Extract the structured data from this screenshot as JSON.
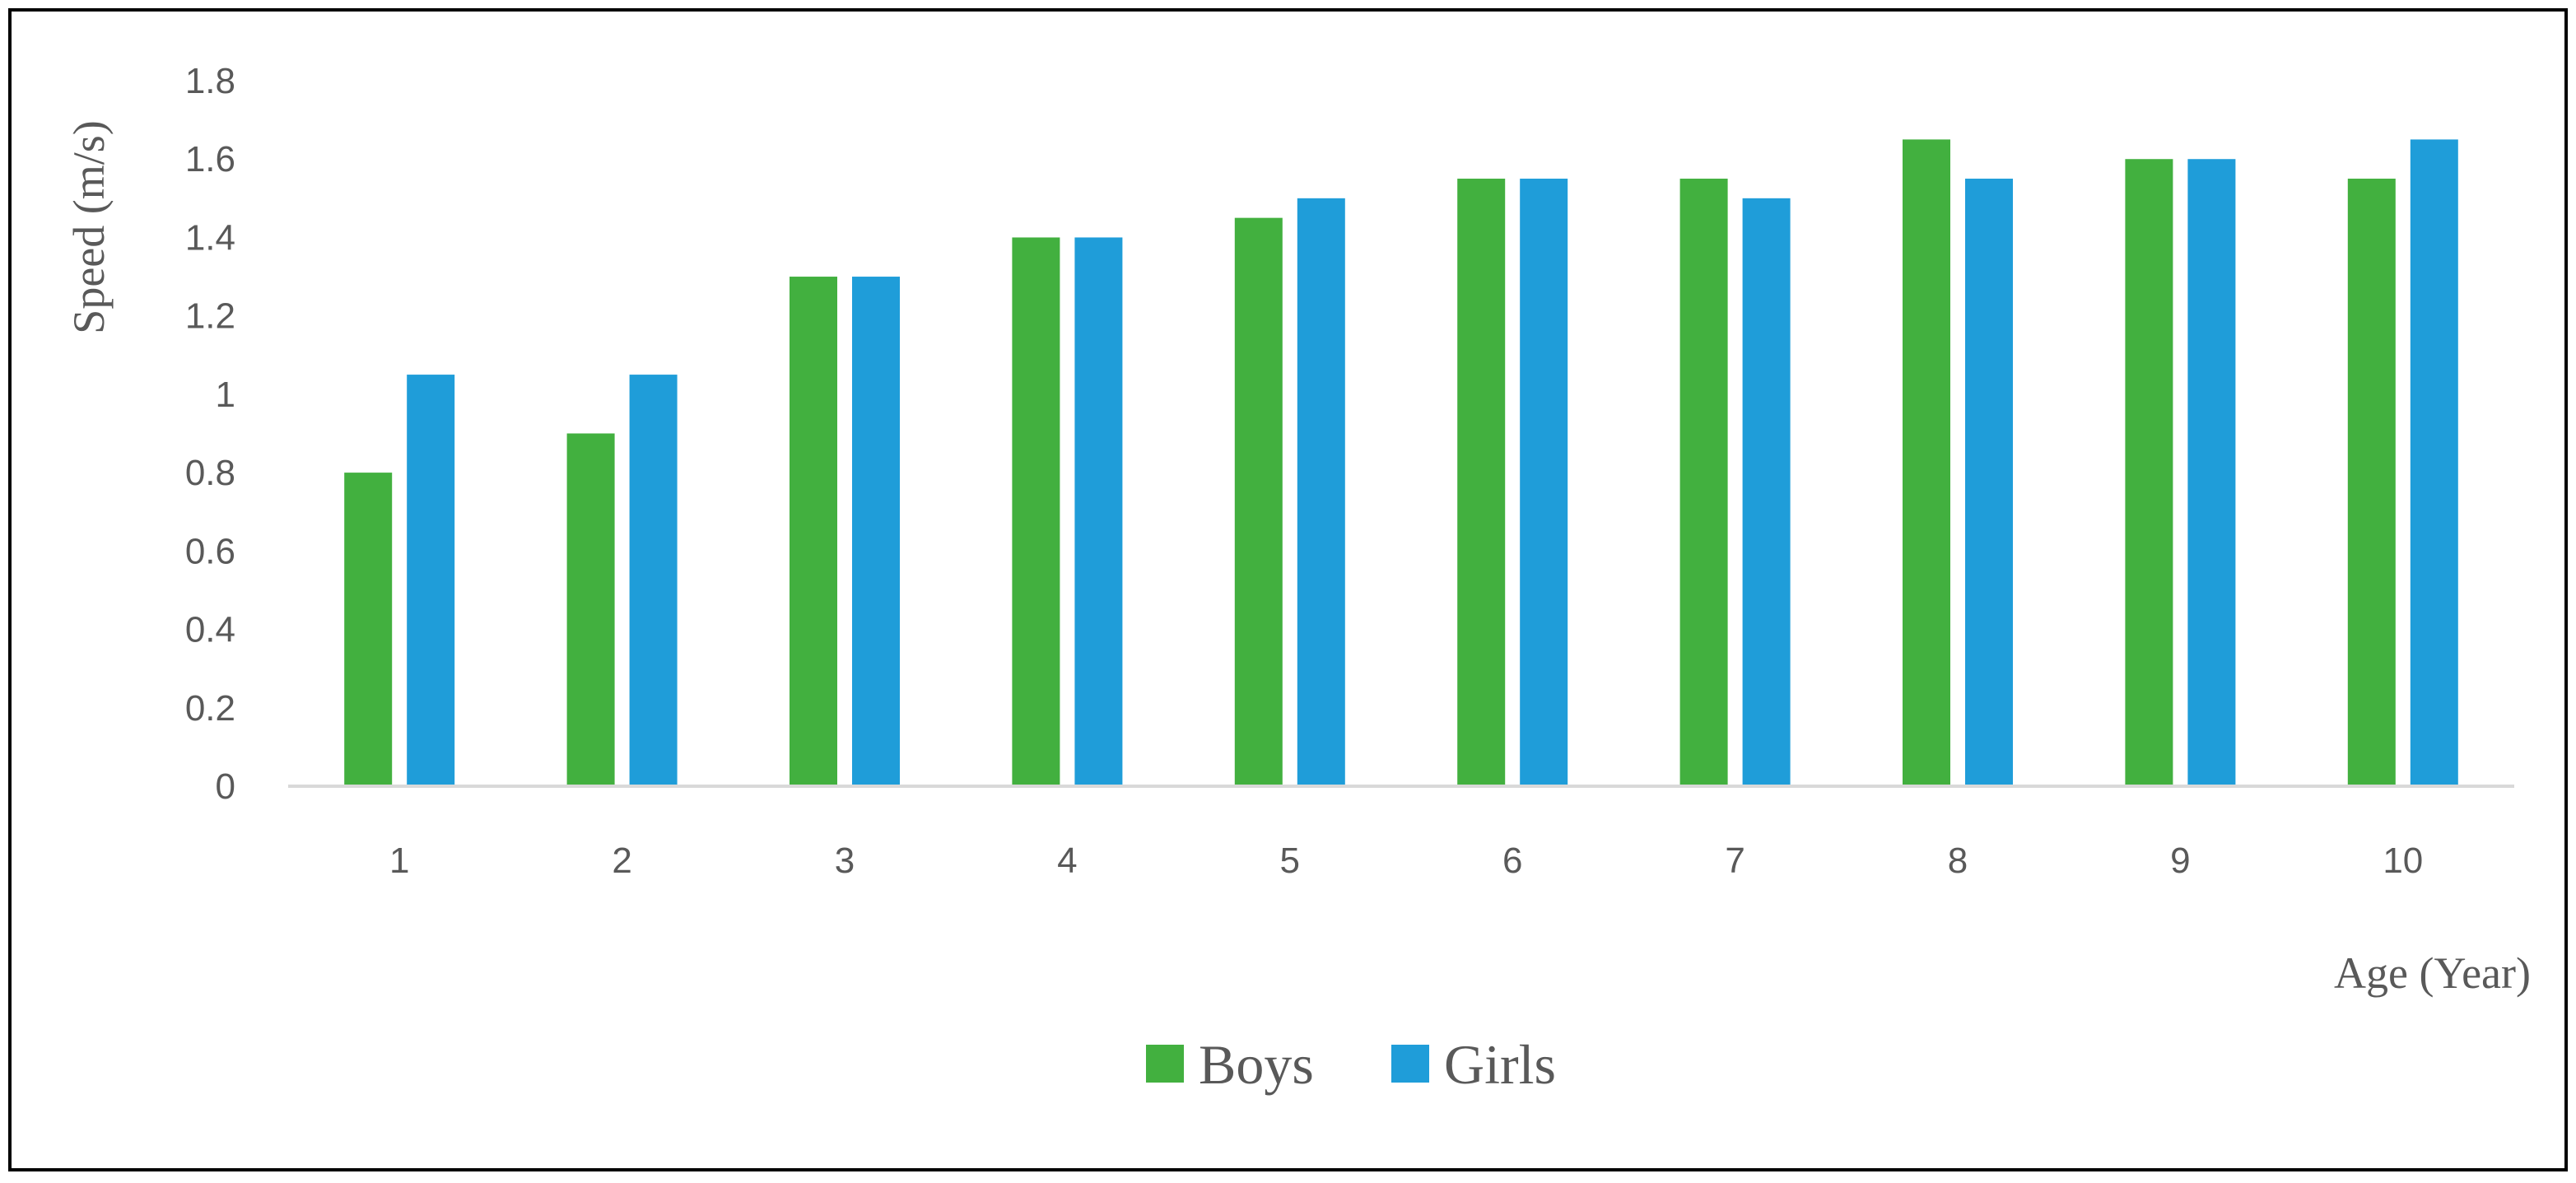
{
  "chart_data": {
    "type": "bar",
    "xlabel": "Age (Year)",
    "ylabel": "Speed (m/s)",
    "categories": [
      "1",
      "2",
      "3",
      "4",
      "5",
      "6",
      "7",
      "8",
      "9",
      "10"
    ],
    "series": [
      {
        "name": "Boys",
        "color": "#42B03F",
        "values": [
          0.8,
          0.9,
          1.3,
          1.4,
          1.45,
          1.55,
          1.55,
          1.65,
          1.6,
          1.55
        ]
      },
      {
        "name": "Girls",
        "color": "#1F9DD9",
        "values": [
          1.05,
          1.05,
          1.3,
          1.4,
          1.5,
          1.55,
          1.5,
          1.55,
          1.6,
          1.65
        ]
      }
    ],
    "ylim": [
      0,
      1.8
    ],
    "yticks": [
      "0",
      "0.2",
      "0.4",
      "0.6",
      "0.8",
      "1",
      "1.2",
      "1.4",
      "1.6",
      "1.8"
    ],
    "grid": false,
    "legend_position": "bottom-center"
  }
}
